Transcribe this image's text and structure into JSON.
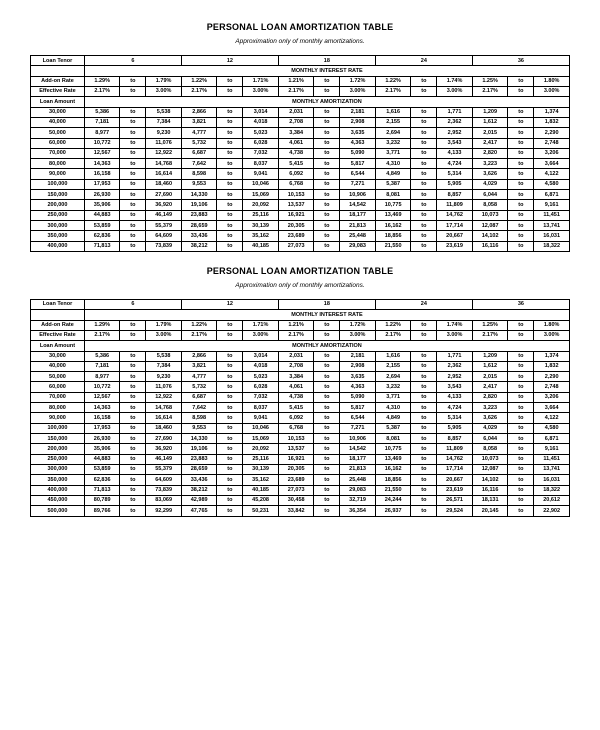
{
  "tables": [
    {
      "title": "PERSONAL LOAN AMORTIZATION TABLE",
      "subtitle": "Approximation only of monthly amortizations.",
      "tenorLabel": "Loan Tenor",
      "tenors": [
        "6",
        "12",
        "18",
        "24",
        "36"
      ],
      "rateHeader": "MONTHLY INTEREST RATE",
      "amortHeader": "MONTHLY AMORTIZATION",
      "addOnLabel": "Add-on Rate",
      "addOn": [
        [
          "1.29%",
          "1.79%"
        ],
        [
          "1.22%",
          "1.71%"
        ],
        [
          "1.21%",
          "1.72%"
        ],
        [
          "1.22%",
          "1.74%"
        ],
        [
          "1.25%",
          "1.80%"
        ]
      ],
      "effLabel": "Effective Rate",
      "eff": [
        [
          "2.17%",
          "3.00%"
        ],
        [
          "2.17%",
          "3.00%"
        ],
        [
          "2.17%",
          "3.00%"
        ],
        [
          "2.17%",
          "3.00%"
        ],
        [
          "2.17%",
          "3.00%"
        ]
      ],
      "amtLabel": "Loan Amount",
      "to": "to",
      "rows": [
        {
          "a": "30,000",
          "v": [
            [
              "5,386",
              "5,538"
            ],
            [
              "2,866",
              "3,014"
            ],
            [
              "2,031",
              "2,181"
            ],
            [
              "1,616",
              "1,771"
            ],
            [
              "1,209",
              "1,374"
            ]
          ]
        },
        {
          "a": "40,000",
          "v": [
            [
              "7,181",
              "7,384"
            ],
            [
              "3,821",
              "4,018"
            ],
            [
              "2,708",
              "2,908"
            ],
            [
              "2,155",
              "2,362"
            ],
            [
              "1,612",
              "1,832"
            ]
          ]
        },
        {
          "a": "50,000",
          "v": [
            [
              "8,977",
              "9,230"
            ],
            [
              "4,777",
              "5,023"
            ],
            [
              "3,384",
              "3,635"
            ],
            [
              "2,694",
              "2,952"
            ],
            [
              "2,015",
              "2,290"
            ]
          ]
        },
        {
          "a": "60,000",
          "v": [
            [
              "10,772",
              "11,076"
            ],
            [
              "5,732",
              "6,028"
            ],
            [
              "4,061",
              "4,363"
            ],
            [
              "3,232",
              "3,543"
            ],
            [
              "2,417",
              "2,748"
            ]
          ]
        },
        {
          "a": "70,000",
          "v": [
            [
              "12,567",
              "12,922"
            ],
            [
              "6,687",
              "7,032"
            ],
            [
              "4,738",
              "5,090"
            ],
            [
              "3,771",
              "4,133"
            ],
            [
              "2,820",
              "3,206"
            ]
          ]
        },
        {
          "a": "80,000",
          "v": [
            [
              "14,363",
              "14,768"
            ],
            [
              "7,642",
              "8,037"
            ],
            [
              "5,415",
              "5,817"
            ],
            [
              "4,310",
              "4,724"
            ],
            [
              "3,223",
              "3,664"
            ]
          ]
        },
        {
          "a": "90,000",
          "v": [
            [
              "16,158",
              "16,614"
            ],
            [
              "8,598",
              "9,041"
            ],
            [
              "6,092",
              "6,544"
            ],
            [
              "4,849",
              "5,314"
            ],
            [
              "3,626",
              "4,122"
            ]
          ]
        },
        {
          "a": "100,000",
          "v": [
            [
              "17,953",
              "18,460"
            ],
            [
              "9,553",
              "10,046"
            ],
            [
              "6,768",
              "7,271"
            ],
            [
              "5,387",
              "5,905"
            ],
            [
              "4,029",
              "4,580"
            ]
          ]
        },
        {
          "a": "150,000",
          "v": [
            [
              "26,930",
              "27,690"
            ],
            [
              "14,330",
              "15,069"
            ],
            [
              "10,153",
              "10,906"
            ],
            [
              "8,081",
              "8,857"
            ],
            [
              "6,044",
              "6,871"
            ]
          ]
        },
        {
          "a": "200,000",
          "v": [
            [
              "35,906",
              "36,920"
            ],
            [
              "19,106",
              "20,092"
            ],
            [
              "13,537",
              "14,542"
            ],
            [
              "10,775",
              "11,809"
            ],
            [
              "8,058",
              "9,161"
            ]
          ]
        },
        {
          "a": "250,000",
          "v": [
            [
              "44,883",
              "46,149"
            ],
            [
              "23,883",
              "25,116"
            ],
            [
              "16,921",
              "18,177"
            ],
            [
              "13,469",
              "14,762"
            ],
            [
              "10,073",
              "11,451"
            ]
          ]
        },
        {
          "a": "300,000",
          "v": [
            [
              "53,859",
              "55,379"
            ],
            [
              "28,659",
              "30,139"
            ],
            [
              "20,305",
              "21,813"
            ],
            [
              "16,162",
              "17,714"
            ],
            [
              "12,087",
              "13,741"
            ]
          ]
        },
        {
          "a": "350,000",
          "v": [
            [
              "62,836",
              "64,609"
            ],
            [
              "33,436",
              "35,162"
            ],
            [
              "23,689",
              "25,448"
            ],
            [
              "18,856",
              "20,667"
            ],
            [
              "14,102",
              "16,031"
            ]
          ]
        },
        {
          "a": "400,000",
          "v": [
            [
              "71,813",
              "73,839"
            ],
            [
              "38,212",
              "40,185"
            ],
            [
              "27,073",
              "29,083"
            ],
            [
              "21,550",
              "23,619"
            ],
            [
              "16,116",
              "18,322"
            ]
          ]
        }
      ]
    },
    {
      "title": "PERSONAL LOAN AMORTIZATION TABLE",
      "subtitle": "Approximation only of monthly amortizations.",
      "tenorLabel": "Loan Tenor",
      "tenors": [
        "6",
        "12",
        "18",
        "24",
        "36"
      ],
      "rateHeader": "MONTHLY INTEREST RATE",
      "amortHeader": "MONTHLY AMORTIZATION",
      "addOnLabel": "Add-on Rate",
      "addOn": [
        [
          "1.29%",
          "1.79%"
        ],
        [
          "1.22%",
          "1.71%"
        ],
        [
          "1.21%",
          "1.72%"
        ],
        [
          "1.22%",
          "1.74%"
        ],
        [
          "1.25%",
          "1.80%"
        ]
      ],
      "effLabel": "Effective Rate",
      "eff": [
        [
          "2.17%",
          "3.00%"
        ],
        [
          "2.17%",
          "3.00%"
        ],
        [
          "2.17%",
          "3.00%"
        ],
        [
          "2.17%",
          "3.00%"
        ],
        [
          "2.17%",
          "3.00%"
        ]
      ],
      "amtLabel": "Loan Amount",
      "to": "to",
      "rows": [
        {
          "a": "30,000",
          "v": [
            [
              "5,386",
              "5,538"
            ],
            [
              "2,866",
              "3,014"
            ],
            [
              "2,031",
              "2,181"
            ],
            [
              "1,616",
              "1,771"
            ],
            [
              "1,209",
              "1,374"
            ]
          ]
        },
        {
          "a": "40,000",
          "v": [
            [
              "7,181",
              "7,384"
            ],
            [
              "3,821",
              "4,018"
            ],
            [
              "2,708",
              "2,908"
            ],
            [
              "2,155",
              "2,362"
            ],
            [
              "1,612",
              "1,832"
            ]
          ]
        },
        {
          "a": "50,000",
          "v": [
            [
              "8,977",
              "9,230"
            ],
            [
              "4,777",
              "5,023"
            ],
            [
              "3,384",
              "3,635"
            ],
            [
              "2,694",
              "2,952"
            ],
            [
              "2,015",
              "2,290"
            ]
          ]
        },
        {
          "a": "60,000",
          "v": [
            [
              "10,772",
              "11,076"
            ],
            [
              "5,732",
              "6,028"
            ],
            [
              "4,061",
              "4,363"
            ],
            [
              "3,232",
              "3,543"
            ],
            [
              "2,417",
              "2,748"
            ]
          ]
        },
        {
          "a": "70,000",
          "v": [
            [
              "12,567",
              "12,922"
            ],
            [
              "6,687",
              "7,032"
            ],
            [
              "4,738",
              "5,090"
            ],
            [
              "3,771",
              "4,133"
            ],
            [
              "2,820",
              "3,206"
            ]
          ]
        },
        {
          "a": "80,000",
          "v": [
            [
              "14,363",
              "14,768"
            ],
            [
              "7,642",
              "8,037"
            ],
            [
              "5,415",
              "5,817"
            ],
            [
              "4,310",
              "4,724"
            ],
            [
              "3,223",
              "3,664"
            ]
          ]
        },
        {
          "a": "90,000",
          "v": [
            [
              "16,158",
              "16,614"
            ],
            [
              "8,598",
              "9,041"
            ],
            [
              "6,092",
              "6,544"
            ],
            [
              "4,849",
              "5,314"
            ],
            [
              "3,626",
              "4,122"
            ]
          ]
        },
        {
          "a": "100,000",
          "v": [
            [
              "17,953",
              "18,460"
            ],
            [
              "9,553",
              "10,046"
            ],
            [
              "6,768",
              "7,271"
            ],
            [
              "5,387",
              "5,905"
            ],
            [
              "4,029",
              "4,580"
            ]
          ]
        },
        {
          "a": "150,000",
          "v": [
            [
              "26,930",
              "27,690"
            ],
            [
              "14,330",
              "15,069"
            ],
            [
              "10,153",
              "10,906"
            ],
            [
              "8,081",
              "8,857"
            ],
            [
              "6,044",
              "6,871"
            ]
          ]
        },
        {
          "a": "200,000",
          "v": [
            [
              "35,906",
              "36,920"
            ],
            [
              "19,106",
              "20,092"
            ],
            [
              "13,537",
              "14,542"
            ],
            [
              "10,775",
              "11,809"
            ],
            [
              "8,058",
              "9,161"
            ]
          ]
        },
        {
          "a": "250,000",
          "v": [
            [
              "44,883",
              "46,149"
            ],
            [
              "23,883",
              "25,116"
            ],
            [
              "16,921",
              "18,177"
            ],
            [
              "13,469",
              "14,762"
            ],
            [
              "10,073",
              "11,451"
            ]
          ]
        },
        {
          "a": "300,000",
          "v": [
            [
              "53,859",
              "55,379"
            ],
            [
              "28,659",
              "30,139"
            ],
            [
              "20,305",
              "21,813"
            ],
            [
              "16,162",
              "17,714"
            ],
            [
              "12,087",
              "13,741"
            ]
          ]
        },
        {
          "a": "350,000",
          "v": [
            [
              "62,836",
              "64,609"
            ],
            [
              "33,436",
              "35,162"
            ],
            [
              "23,689",
              "25,448"
            ],
            [
              "18,856",
              "20,667"
            ],
            [
              "14,102",
              "16,031"
            ]
          ]
        },
        {
          "a": "400,000",
          "v": [
            [
              "71,813",
              "73,839"
            ],
            [
              "38,212",
              "40,185"
            ],
            [
              "27,073",
              "29,083"
            ],
            [
              "21,550",
              "23,619"
            ],
            [
              "16,116",
              "18,322"
            ]
          ]
        },
        {
          "a": "450,000",
          "v": [
            [
              "80,789",
              "83,069"
            ],
            [
              "42,989",
              "45,208"
            ],
            [
              "30,458",
              "32,719"
            ],
            [
              "24,244",
              "26,571"
            ],
            [
              "18,131",
              "20,612"
            ]
          ]
        },
        {
          "a": "500,000",
          "v": [
            [
              "89,766",
              "92,299"
            ],
            [
              "47,765",
              "50,231"
            ],
            [
              "33,842",
              "36,354"
            ],
            [
              "26,937",
              "29,524"
            ],
            [
              "20,145",
              "22,902"
            ]
          ]
        }
      ]
    }
  ]
}
